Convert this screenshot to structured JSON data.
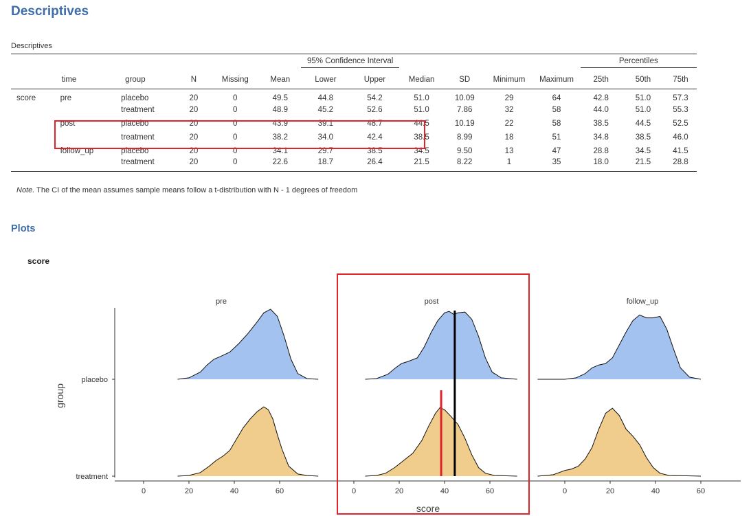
{
  "headings": {
    "descriptives": "Descriptives",
    "table_title": "Descriptives",
    "plots": "Plots",
    "plot_title": "score"
  },
  "table": {
    "group_headers": {
      "ci": "95% Confidence Interval",
      "percentiles": "Percentiles"
    },
    "columns": [
      "",
      "time",
      "group",
      "N",
      "Missing",
      "Mean",
      "Lower",
      "Upper",
      "Median",
      "SD",
      "Minimum",
      "Maximum",
      "25th",
      "50th",
      "75th"
    ],
    "rows": [
      [
        "score",
        "pre",
        "placebo",
        "20",
        "0",
        "49.5",
        "44.8",
        "54.2",
        "51.0",
        "10.09",
        "29",
        "64",
        "42.8",
        "51.0",
        "57.3"
      ],
      [
        "",
        "",
        "treatment",
        "20",
        "0",
        "48.9",
        "45.2",
        "52.6",
        "51.0",
        "7.86",
        "32",
        "58",
        "44.0",
        "51.0",
        "55.3"
      ],
      [
        "",
        "post",
        "placebo",
        "20",
        "0",
        "43.9",
        "39.1",
        "48.7",
        "44.5",
        "10.19",
        "22",
        "58",
        "38.5",
        "44.5",
        "52.5"
      ],
      [
        "",
        "",
        "treatment",
        "20",
        "0",
        "38.2",
        "34.0",
        "42.4",
        "38.5",
        "8.99",
        "18",
        "51",
        "34.8",
        "38.5",
        "46.0"
      ],
      [
        "",
        "follow_up",
        "placebo",
        "20",
        "0",
        "34.1",
        "29.7",
        "38.5",
        "34.5",
        "9.50",
        "13",
        "47",
        "28.8",
        "34.5",
        "41.5"
      ],
      [
        "",
        "",
        "treatment",
        "20",
        "0",
        "22.6",
        "18.7",
        "26.4",
        "21.5",
        "8.22",
        "1",
        "35",
        "18.0",
        "21.5",
        "28.8"
      ]
    ],
    "note_label": "Note.",
    "note_text": " The CI of the mean assumes sample means follow a t-distribution with N - 1 degrees of freedom"
  },
  "colors": {
    "heading": "#3e6da9",
    "placebo_fill": "#a4c2ef",
    "treatment_fill": "#f0cd8c",
    "highlight": "#e0222a",
    "post_placebo_median_line": "#000000",
    "post_treatment_median_line": "#e0222a"
  },
  "chart_data": {
    "type": "ridgeline-density",
    "facets": [
      "pre",
      "post",
      "follow_up"
    ],
    "groups": [
      "placebo",
      "treatment"
    ],
    "xlabel": "score",
    "ylabel": "group",
    "x_ticks": [
      0,
      20,
      40,
      60
    ],
    "xlim": [
      -10,
      75
    ],
    "densities": {
      "pre": {
        "placebo": [
          [
            15,
            0.0
          ],
          [
            20,
            0.02
          ],
          [
            25,
            0.1
          ],
          [
            28,
            0.2
          ],
          [
            31,
            0.28
          ],
          [
            34,
            0.32
          ],
          [
            38,
            0.38
          ],
          [
            42,
            0.5
          ],
          [
            46,
            0.64
          ],
          [
            50,
            0.8
          ],
          [
            53,
            0.93
          ],
          [
            56,
            0.98
          ],
          [
            59,
            0.88
          ],
          [
            62,
            0.6
          ],
          [
            65,
            0.28
          ],
          [
            68,
            0.08
          ],
          [
            72,
            0.01
          ],
          [
            77,
            0.0
          ]
        ],
        "treatment": [
          [
            15,
            0.0
          ],
          [
            20,
            0.01
          ],
          [
            25,
            0.05
          ],
          [
            29,
            0.14
          ],
          [
            32,
            0.22
          ],
          [
            35,
            0.28
          ],
          [
            38,
            0.36
          ],
          [
            41,
            0.52
          ],
          [
            44,
            0.68
          ],
          [
            47,
            0.8
          ],
          [
            50,
            0.9
          ],
          [
            53,
            0.97
          ],
          [
            55,
            0.93
          ],
          [
            57,
            0.8
          ],
          [
            59,
            0.58
          ],
          [
            61,
            0.38
          ],
          [
            64,
            0.14
          ],
          [
            68,
            0.03
          ],
          [
            72,
            0.01
          ],
          [
            77,
            0.0
          ]
        ]
      },
      "post": {
        "placebo": [
          [
            5,
            0.0
          ],
          [
            10,
            0.01
          ],
          [
            15,
            0.07
          ],
          [
            18,
            0.15
          ],
          [
            21,
            0.22
          ],
          [
            24,
            0.25
          ],
          [
            28,
            0.3
          ],
          [
            31,
            0.45
          ],
          [
            34,
            0.65
          ],
          [
            37,
            0.82
          ],
          [
            40,
            0.93
          ],
          [
            42,
            0.95
          ],
          [
            44,
            0.91
          ],
          [
            46,
            0.93
          ],
          [
            49,
            0.94
          ],
          [
            52,
            0.84
          ],
          [
            55,
            0.6
          ],
          [
            58,
            0.3
          ],
          [
            61,
            0.1
          ],
          [
            65,
            0.02
          ],
          [
            72,
            0.0
          ]
        ],
        "treatment": [
          [
            5,
            0.0
          ],
          [
            10,
            0.01
          ],
          [
            14,
            0.04
          ],
          [
            18,
            0.12
          ],
          [
            22,
            0.22
          ],
          [
            26,
            0.32
          ],
          [
            30,
            0.5
          ],
          [
            33,
            0.7
          ],
          [
            36,
            0.88
          ],
          [
            38,
            0.96
          ],
          [
            40,
            0.93
          ],
          [
            43,
            0.83
          ],
          [
            46,
            0.72
          ],
          [
            49,
            0.53
          ],
          [
            52,
            0.3
          ],
          [
            55,
            0.12
          ],
          [
            58,
            0.04
          ],
          [
            62,
            0.01
          ],
          [
            72,
            0.0
          ]
        ]
      },
      "follow_up": {
        "placebo": [
          [
            -12,
            0.0
          ],
          [
            0,
            0.0
          ],
          [
            5,
            0.02
          ],
          [
            9,
            0.08
          ],
          [
            12,
            0.16
          ],
          [
            15,
            0.2
          ],
          [
            18,
            0.22
          ],
          [
            21,
            0.3
          ],
          [
            24,
            0.48
          ],
          [
            27,
            0.66
          ],
          [
            30,
            0.82
          ],
          [
            33,
            0.9
          ],
          [
            36,
            0.86
          ],
          [
            39,
            0.86
          ],
          [
            42,
            0.88
          ],
          [
            45,
            0.7
          ],
          [
            48,
            0.42
          ],
          [
            51,
            0.16
          ],
          [
            55,
            0.03
          ],
          [
            60,
            0.0
          ]
        ],
        "treatment": [
          [
            -12,
            0.0
          ],
          [
            -5,
            0.02
          ],
          [
            0,
            0.08
          ],
          [
            3,
            0.1
          ],
          [
            6,
            0.14
          ],
          [
            9,
            0.24
          ],
          [
            12,
            0.4
          ],
          [
            15,
            0.66
          ],
          [
            18,
            0.88
          ],
          [
            21,
            0.95
          ],
          [
            24,
            0.85
          ],
          [
            27,
            0.66
          ],
          [
            30,
            0.56
          ],
          [
            33,
            0.44
          ],
          [
            36,
            0.26
          ],
          [
            39,
            0.12
          ],
          [
            42,
            0.04
          ],
          [
            46,
            0.01
          ],
          [
            60,
            0.0
          ]
        ]
      }
    },
    "medians_marked": {
      "post": {
        "placebo": 44.5,
        "treatment": 38.5
      }
    }
  }
}
